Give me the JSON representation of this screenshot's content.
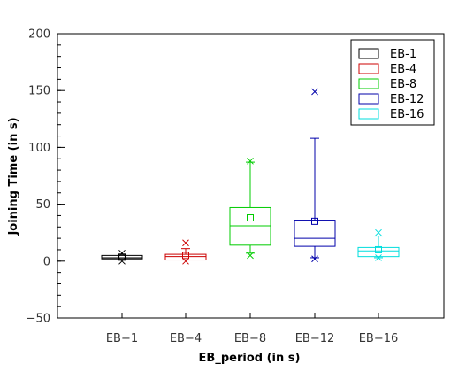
{
  "chart_data": {
    "type": "box",
    "xlabel": "EB_period (in s)",
    "ylabel": "Joining Time (in s)",
    "ylim": [
      -50,
      200
    ],
    "yticks": [
      -50,
      0,
      50,
      100,
      150,
      200
    ],
    "y_minor_step": 10,
    "grid": false,
    "legend_position": "top-right",
    "categories": [
      "EB−1",
      "EB−4",
      "EB−8",
      "EB−12",
      "EB−16"
    ],
    "series": [
      {
        "name": "EB-1",
        "color": "#000000",
        "whisker_low": 1,
        "q1": 2,
        "median": 3,
        "q3": 5,
        "whisker_high": 6,
        "mean": 3.5,
        "outliers_cross": [
          0,
          7
        ]
      },
      {
        "name": "EB-4",
        "color": "#cc0000",
        "whisker_low": 1,
        "q1": 1,
        "median": 4,
        "q3": 6,
        "whisker_high": 11,
        "mean": 5,
        "outliers_cross": [
          0,
          16
        ]
      },
      {
        "name": "EB-8",
        "color": "#00cc00",
        "whisker_low": 7,
        "q1": 14,
        "median": 31,
        "q3": 47,
        "whisker_high": 87,
        "mean": 38,
        "outliers_cross": [
          5,
          88
        ]
      },
      {
        "name": "EB-12",
        "color": "#0000aa",
        "whisker_low": 3,
        "q1": 13,
        "median": 20,
        "q3": 36,
        "whisker_high": 108,
        "mean": 35,
        "outliers_cross": [
          2,
          149
        ]
      },
      {
        "name": "EB-16",
        "color": "#00dddd",
        "whisker_low": 3,
        "q1": 4,
        "median": 9,
        "q3": 12,
        "whisker_high": 22,
        "mean": 10,
        "outliers_cross": [
          3,
          25
        ]
      }
    ]
  }
}
